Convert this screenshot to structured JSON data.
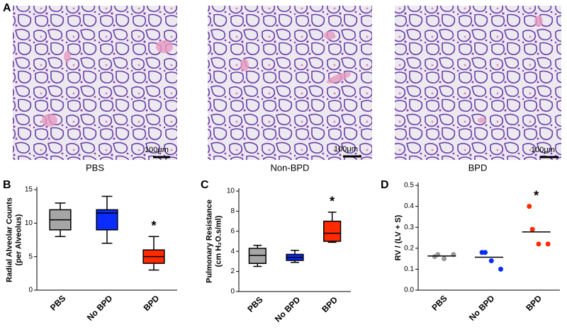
{
  "panel_a": {
    "label": "A",
    "images": [
      {
        "caption": "PBS",
        "scale": "100μm"
      },
      {
        "caption": "Non-BPD",
        "scale": "100μm"
      },
      {
        "caption": "BPD",
        "scale": "100μm"
      }
    ]
  },
  "chart_data": [
    {
      "type": "box",
      "panel": "B",
      "ylabel": [
        "Radial Alveolar Counts",
        "(per Alveolus)"
      ],
      "categories": [
        "PBS",
        "No BPD",
        "BPD"
      ],
      "colors": [
        "#a6a6a6",
        "#0a2cff",
        "#ff2a00"
      ],
      "boxes": [
        {
          "min": 8,
          "q1": 9,
          "median": 10.5,
          "q3": 12,
          "max": 13
        },
        {
          "min": 7,
          "q1": 9,
          "median": 11.5,
          "q3": 12,
          "max": 14
        },
        {
          "min": 3,
          "q1": 4,
          "median": 5,
          "q3": 6,
          "max": 8
        }
      ],
      "annotation": "*",
      "ylim": [
        0,
        15
      ],
      "yticks": [
        0,
        5,
        10,
        15
      ]
    },
    {
      "type": "box",
      "panel": "C",
      "ylabel": [
        "Pulmonary Resistance",
        "(cm H₂O.s/ml)"
      ],
      "categories": [
        "PBS",
        "No BPD",
        "BPD"
      ],
      "colors": [
        "#a6a6a6",
        "#0a2cff",
        "#ff2a00"
      ],
      "boxes": [
        {
          "min": 2.5,
          "q1": 2.8,
          "median": 3.6,
          "q3": 4.3,
          "max": 4.6
        },
        {
          "min": 2.9,
          "q1": 3.1,
          "median": 3.4,
          "q3": 3.7,
          "max": 4.1
        },
        {
          "min": 4.9,
          "q1": 5.0,
          "median": 5.8,
          "q3": 7.0,
          "max": 7.9
        }
      ],
      "annotation": "*",
      "ylim": [
        0,
        10
      ],
      "yticks": [
        0,
        2,
        4,
        6,
        8,
        10
      ]
    },
    {
      "type": "dot",
      "panel": "D",
      "ylabel": [
        "RV / (LV + S)"
      ],
      "categories": [
        "PBS",
        "No BPD",
        "BPD"
      ],
      "colors": [
        "#999999",
        "#0a2cff",
        "#ff2a00"
      ],
      "points": [
        [
          0.16,
          0.17,
          0.15,
          0.17
        ],
        [
          0.18,
          0.18,
          0.14,
          0.1
        ],
        [
          0.4,
          0.29,
          0.22,
          0.22
        ]
      ],
      "means": [
        0.163,
        0.157,
        0.278
      ],
      "annotation": "*",
      "ylim": [
        0,
        0.5
      ],
      "yticks": [
        {
          "value": 0,
          "label": "0.0"
        },
        0.1,
        0.2,
        0.3,
        0.4,
        0.5
      ]
    }
  ]
}
